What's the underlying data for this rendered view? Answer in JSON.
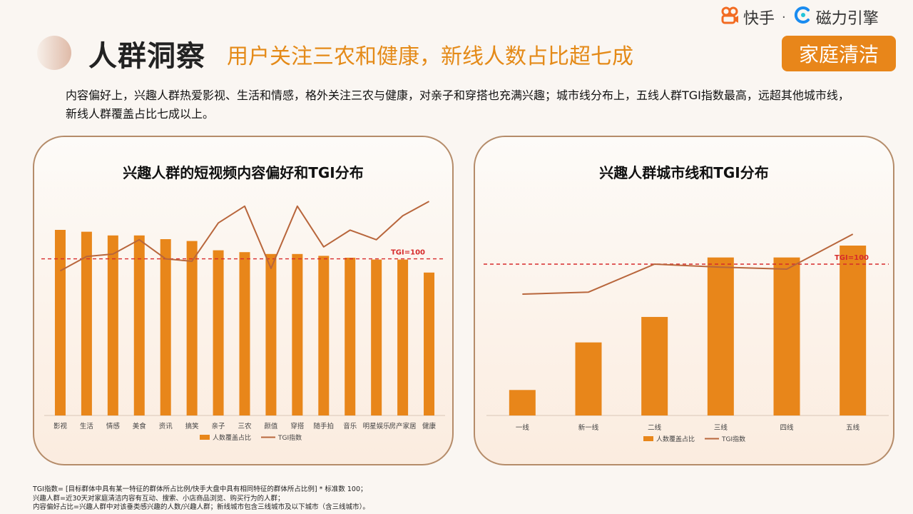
{
  "header": {
    "title": "人群洞察",
    "subtitle": "用户关注三农和健康，新线人数占比超七成",
    "brand_kuaishou": "快手",
    "brand_separator": "·",
    "brand_cili": "磁力引擎",
    "tag": "家庭清洁"
  },
  "description": "内容偏好上，兴趣人群热爱影视、生活和情感，格外关注三农与健康，对亲子和穿搭也充满兴趣；城市线分布上，五线人群TGI指数最高，远超其他城市线，新线人群覆盖占比七成以上。",
  "colors": {
    "bar": "#e8861a",
    "line": "#b8663c",
    "ref": "#d62b2b",
    "accent": "#e48a18"
  },
  "chart_data": [
    {
      "type": "bar",
      "title": "兴趣人群的短视频内容偏好和TGI分布",
      "categories": [
        "影视",
        "生活",
        "情感",
        "美食",
        "资讯",
        "搞笑",
        "亲子",
        "三农",
        "颜值",
        "穿搭",
        "随手拍",
        "音乐",
        "明星娱乐",
        "房产家居",
        "健康"
      ],
      "series": [
        {
          "name": "人数覆盖占比",
          "type": "bar",
          "values": [
            100,
            99,
            97,
            97,
            95,
            94,
            89,
            88,
            87,
            87,
            86,
            85,
            84,
            84,
            77
          ]
        },
        {
          "name": "TGI指数",
          "type": "line",
          "values": [
            95,
            101,
            102,
            108,
            100,
            99,
            115,
            122,
            96,
            122,
            105,
            112,
            108,
            118,
            124
          ]
        }
      ],
      "reference_line": {
        "label": "TGI=100",
        "value": 100
      },
      "grid": false,
      "legend": "bottom"
    },
    {
      "type": "bar",
      "title": "兴趣人群城市线和TGI分布",
      "categories": [
        "一线",
        "新一线",
        "二线",
        "三线",
        "四线",
        "五线"
      ],
      "series": [
        {
          "name": "人数覆盖占比",
          "type": "bar",
          "values": [
            15,
            43,
            58,
            93,
            93,
            100
          ]
        },
        {
          "name": "TGI指数",
          "type": "line",
          "values": [
            70,
            72,
            100,
            97,
            95,
            130
          ]
        }
      ],
      "reference_line": {
        "label": "TGI=100",
        "value": 100
      },
      "grid": false,
      "legend": "bottom"
    }
  ],
  "footnotes": [
    "TGI指数= [目标群体中具有某一特征的群体所占比例/快手大盘中具有相同特征的群体所占比例] * 标准数 100；",
    "兴趣人群=近30天对家庭清洁内容有互动、搜索、小店商品浏览、购买行为的人群；",
    "内容偏好占比=兴趣人群中对该垂类感兴趣的人数/兴趣人群；新线城市包含三线城市及以下城市（含三线城市）。"
  ]
}
